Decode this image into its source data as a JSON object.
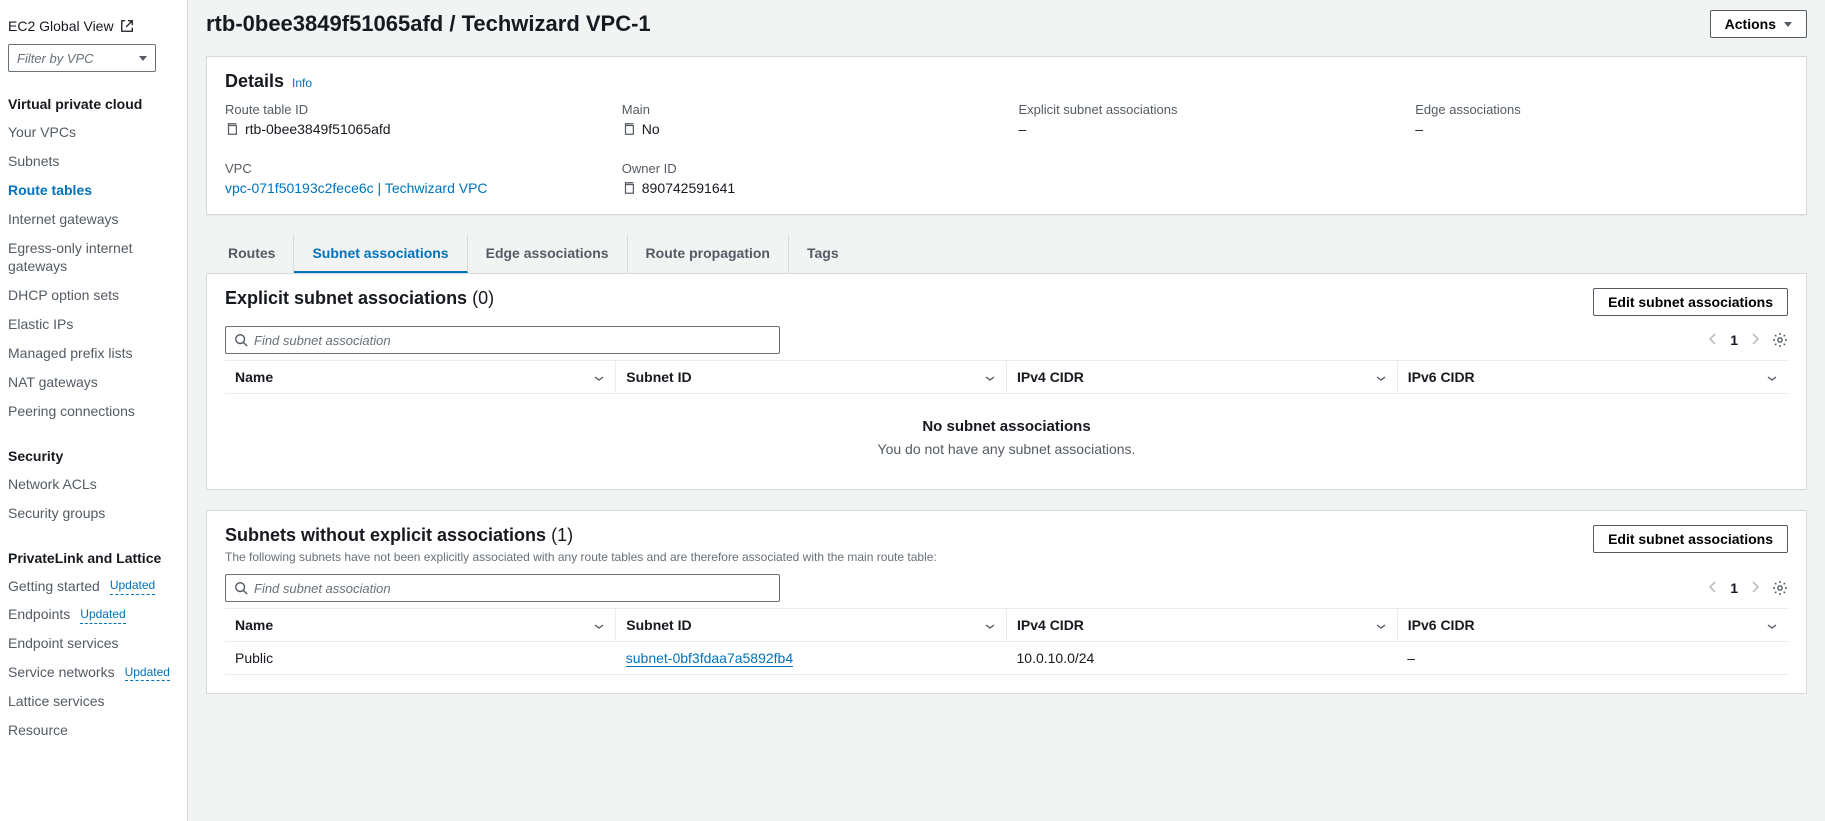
{
  "sidebar": {
    "ec2_global_view": "EC2 Global View",
    "filter_placeholder": "Filter by VPC",
    "groups": [
      {
        "title": "Virtual private cloud",
        "items": [
          {
            "label": "Your VPCs",
            "active": false
          },
          {
            "label": "Subnets",
            "active": false
          },
          {
            "label": "Route tables",
            "active": true
          },
          {
            "label": "Internet gateways",
            "active": false
          },
          {
            "label": "Egress-only internet gateways",
            "active": false
          },
          {
            "label": "DHCP option sets",
            "active": false
          },
          {
            "label": "Elastic IPs",
            "active": false
          },
          {
            "label": "Managed prefix lists",
            "active": false
          },
          {
            "label": "NAT gateways",
            "active": false
          },
          {
            "label": "Peering connections",
            "active": false
          }
        ]
      },
      {
        "title": "Security",
        "items": [
          {
            "label": "Network ACLs",
            "active": false
          },
          {
            "label": "Security groups",
            "active": false
          }
        ]
      },
      {
        "title": "PrivateLink and Lattice",
        "items": [
          {
            "label": "Getting started",
            "badge": "Updated"
          },
          {
            "label": "Endpoints",
            "badge": "Updated"
          },
          {
            "label": "Endpoint services"
          },
          {
            "label": "Service networks",
            "badge": "Updated"
          },
          {
            "label": "Lattice services"
          },
          {
            "label": "Resource"
          }
        ]
      }
    ]
  },
  "header": {
    "title": "rtb-0bee3849f51065afd / Techwizard VPC-1",
    "actions_label": "Actions"
  },
  "details": {
    "title": "Details",
    "info_label": "Info",
    "fields": {
      "route_table_id": {
        "label": "Route table ID",
        "value": "rtb-0bee3849f51065afd",
        "copyable": true
      },
      "main": {
        "label": "Main",
        "value": "No",
        "copyable": true
      },
      "explicit_assoc": {
        "label": "Explicit subnet associations",
        "value": "–"
      },
      "edge_assoc": {
        "label": "Edge associations",
        "value": "–"
      },
      "vpc": {
        "label": "VPC",
        "value": "vpc-071f50193c2fece6c | Techwizard VPC",
        "link": true
      },
      "owner_id": {
        "label": "Owner ID",
        "value": "890742591641",
        "copyable": true
      }
    }
  },
  "tabs": {
    "items": [
      "Routes",
      "Subnet associations",
      "Edge associations",
      "Route propagation",
      "Tags"
    ],
    "active": "Subnet associations"
  },
  "explicit": {
    "title": "Explicit subnet associations",
    "count": "(0)",
    "edit_label": "Edit subnet associations",
    "search_placeholder": "Find subnet association",
    "page": "1",
    "columns": [
      "Name",
      "Subnet ID",
      "IPv4 CIDR",
      "IPv6 CIDR"
    ],
    "empty_title": "No subnet associations",
    "empty_desc": "You do not have any subnet associations."
  },
  "without": {
    "title": "Subnets without explicit associations",
    "count": "(1)",
    "desc": "The following subnets have not been explicitly associated with any route tables and are therefore associated with the main route table:",
    "edit_label": "Edit subnet associations",
    "search_placeholder": "Find subnet association",
    "page": "1",
    "columns": [
      "Name",
      "Subnet ID",
      "IPv4 CIDR",
      "IPv6 CIDR"
    ],
    "row": {
      "name": "Public",
      "subnet_id": "subnet-0bf3fdaa7a5892fb4",
      "ipv4": "10.0.10.0/24",
      "ipv6": "–"
    }
  }
}
